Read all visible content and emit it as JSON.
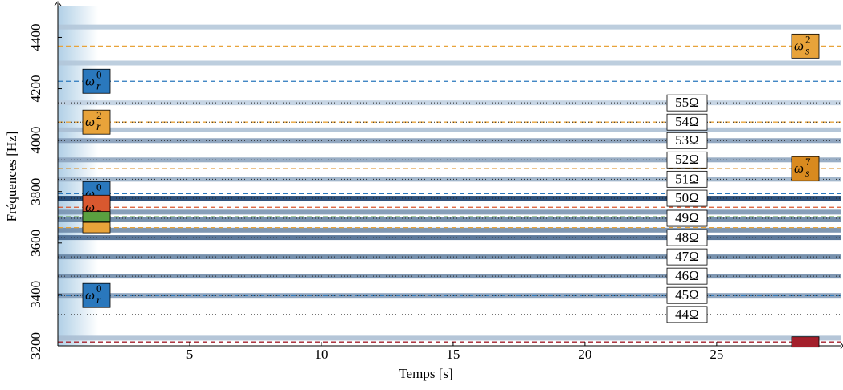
{
  "chart_data": {
    "type": "spectrogram",
    "xlabel": "Temps [s]",
    "ylabel": "Fréquences [Hz]",
    "xlim": [
      0,
      29.7
    ],
    "ylim": [
      3200,
      4520
    ],
    "xticks": [
      5,
      10,
      15,
      20,
      25
    ],
    "yticks": [
      3200,
      3400,
      3600,
      3800,
      4000,
      4200,
      4400
    ],
    "bands": [
      {
        "freq": 4440,
        "intensity": 0.2
      },
      {
        "freq": 4300,
        "intensity": 0.2
      },
      {
        "freq": 4145,
        "intensity": 0.15
      },
      {
        "freq": 4040,
        "intensity": 0.25
      },
      {
        "freq": 3998,
        "intensity": 0.45
      },
      {
        "freq": 3923,
        "intensity": 0.4
      },
      {
        "freq": 3848,
        "intensity": 0.35
      },
      {
        "freq": 3774,
        "intensity": 1.0
      },
      {
        "freq": 3720,
        "intensity": 0.5
      },
      {
        "freq": 3690,
        "intensity": 0.6
      },
      {
        "freq": 3650,
        "intensity": 0.55
      },
      {
        "freq": 3621,
        "intensity": 0.75
      },
      {
        "freq": 3546,
        "intensity": 0.6
      },
      {
        "freq": 3471,
        "intensity": 0.55
      },
      {
        "freq": 3396,
        "intensity": 0.45
      },
      {
        "freq": 3230,
        "intensity": 0.25
      }
    ],
    "resistance_lines": [
      {
        "label": "55Ω",
        "freq": 4145
      },
      {
        "label": "54Ω",
        "freq": 4070
      },
      {
        "label": "53Ω",
        "freq": 3998
      },
      {
        "label": "52Ω",
        "freq": 3923
      },
      {
        "label": "51Ω",
        "freq": 3848
      },
      {
        "label": "50Ω",
        "freq": 3774
      },
      {
        "label": "49Ω",
        "freq": 3696
      },
      {
        "label": "48Ω",
        "freq": 3621
      },
      {
        "label": "47Ω",
        "freq": 3546
      },
      {
        "label": "46Ω",
        "freq": 3471
      },
      {
        "label": "45Ω",
        "freq": 3396
      },
      {
        "label": "44Ω",
        "freq": 3322
      }
    ],
    "modes": [
      {
        "freq": 4366,
        "color": "#e8a33a",
        "side": "right",
        "label": {
          "base": "ω",
          "sub": "s",
          "sup": "2"
        }
      },
      {
        "freq": 4229,
        "color": "#2a78bd",
        "side": "left",
        "label": {
          "base": "ω",
          "sub": "r",
          "sup": "0"
        }
      },
      {
        "freq": 4070,
        "color": "#e8a33a",
        "side": "left",
        "label": {
          "base": "ω",
          "sub": "r",
          "sup": "2"
        }
      },
      {
        "freq": 3889,
        "color": "#d98a1f",
        "side": "right",
        "label": {
          "base": "ω",
          "sub": "s",
          "sup": "7"
        }
      },
      {
        "freq": 3792,
        "color": "#2a78bd",
        "side": "left",
        "label": {
          "base": "ω",
          "sub": "r",
          "sup": "0"
        }
      },
      {
        "freq": 3739,
        "color": "#d9582f",
        "side": "left",
        "label": {
          "base": "ω",
          "sub": "r"
        }
      },
      {
        "freq": 3702,
        "color": "#5aa040",
        "side": "left"
      },
      {
        "freq": 3660,
        "color": "#e8a33a",
        "side": "left"
      },
      {
        "freq": 3396,
        "color": "#2a78bd",
        "side": "left",
        "label": {
          "base": "ω",
          "sub": "r",
          "sup": "0"
        }
      },
      {
        "freq": 3215,
        "color": "#a31f2b",
        "side": "right"
      }
    ]
  }
}
